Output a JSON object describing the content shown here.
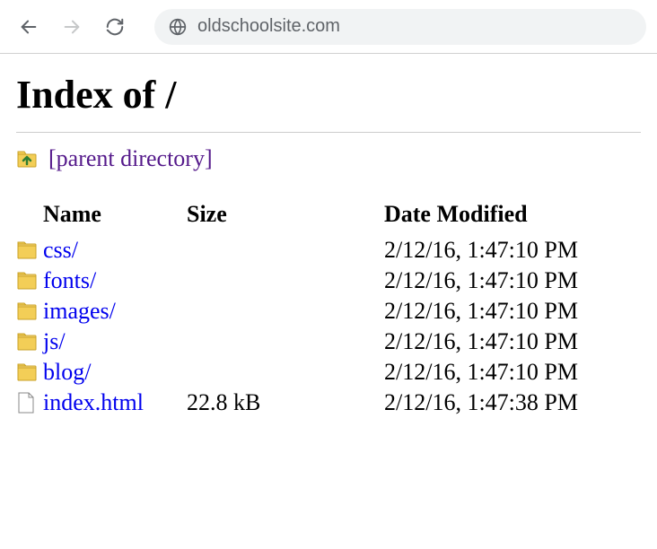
{
  "browser": {
    "url": "oldschoolsite.com"
  },
  "page": {
    "title": "Index of /",
    "parent_link_text": "[parent directory]"
  },
  "table": {
    "headers": {
      "name": "Name",
      "size": "Size",
      "date": "Date Modified"
    },
    "rows": [
      {
        "icon": "folder",
        "name": "css/",
        "size": "",
        "date": "2/12/16, 1:47:10 PM"
      },
      {
        "icon": "folder",
        "name": "fonts/",
        "size": "",
        "date": "2/12/16, 1:47:10 PM"
      },
      {
        "icon": "folder",
        "name": "images/",
        "size": "",
        "date": "2/12/16, 1:47:10 PM"
      },
      {
        "icon": "folder",
        "name": "js/",
        "size": "",
        "date": "2/12/16, 1:47:10 PM"
      },
      {
        "icon": "folder",
        "name": "blog/",
        "size": "",
        "date": "2/12/16, 1:47:10 PM"
      },
      {
        "icon": "file",
        "name": "index.html",
        "size": "22.8 kB",
        "date": "2/12/16, 1:47:38 PM"
      }
    ]
  },
  "colors": {
    "link": "#0000ee",
    "visited": "#551a8b",
    "text": "#000000",
    "border": "#cccccc",
    "address_bg": "#f1f3f4",
    "url_text": "#5f6368"
  }
}
